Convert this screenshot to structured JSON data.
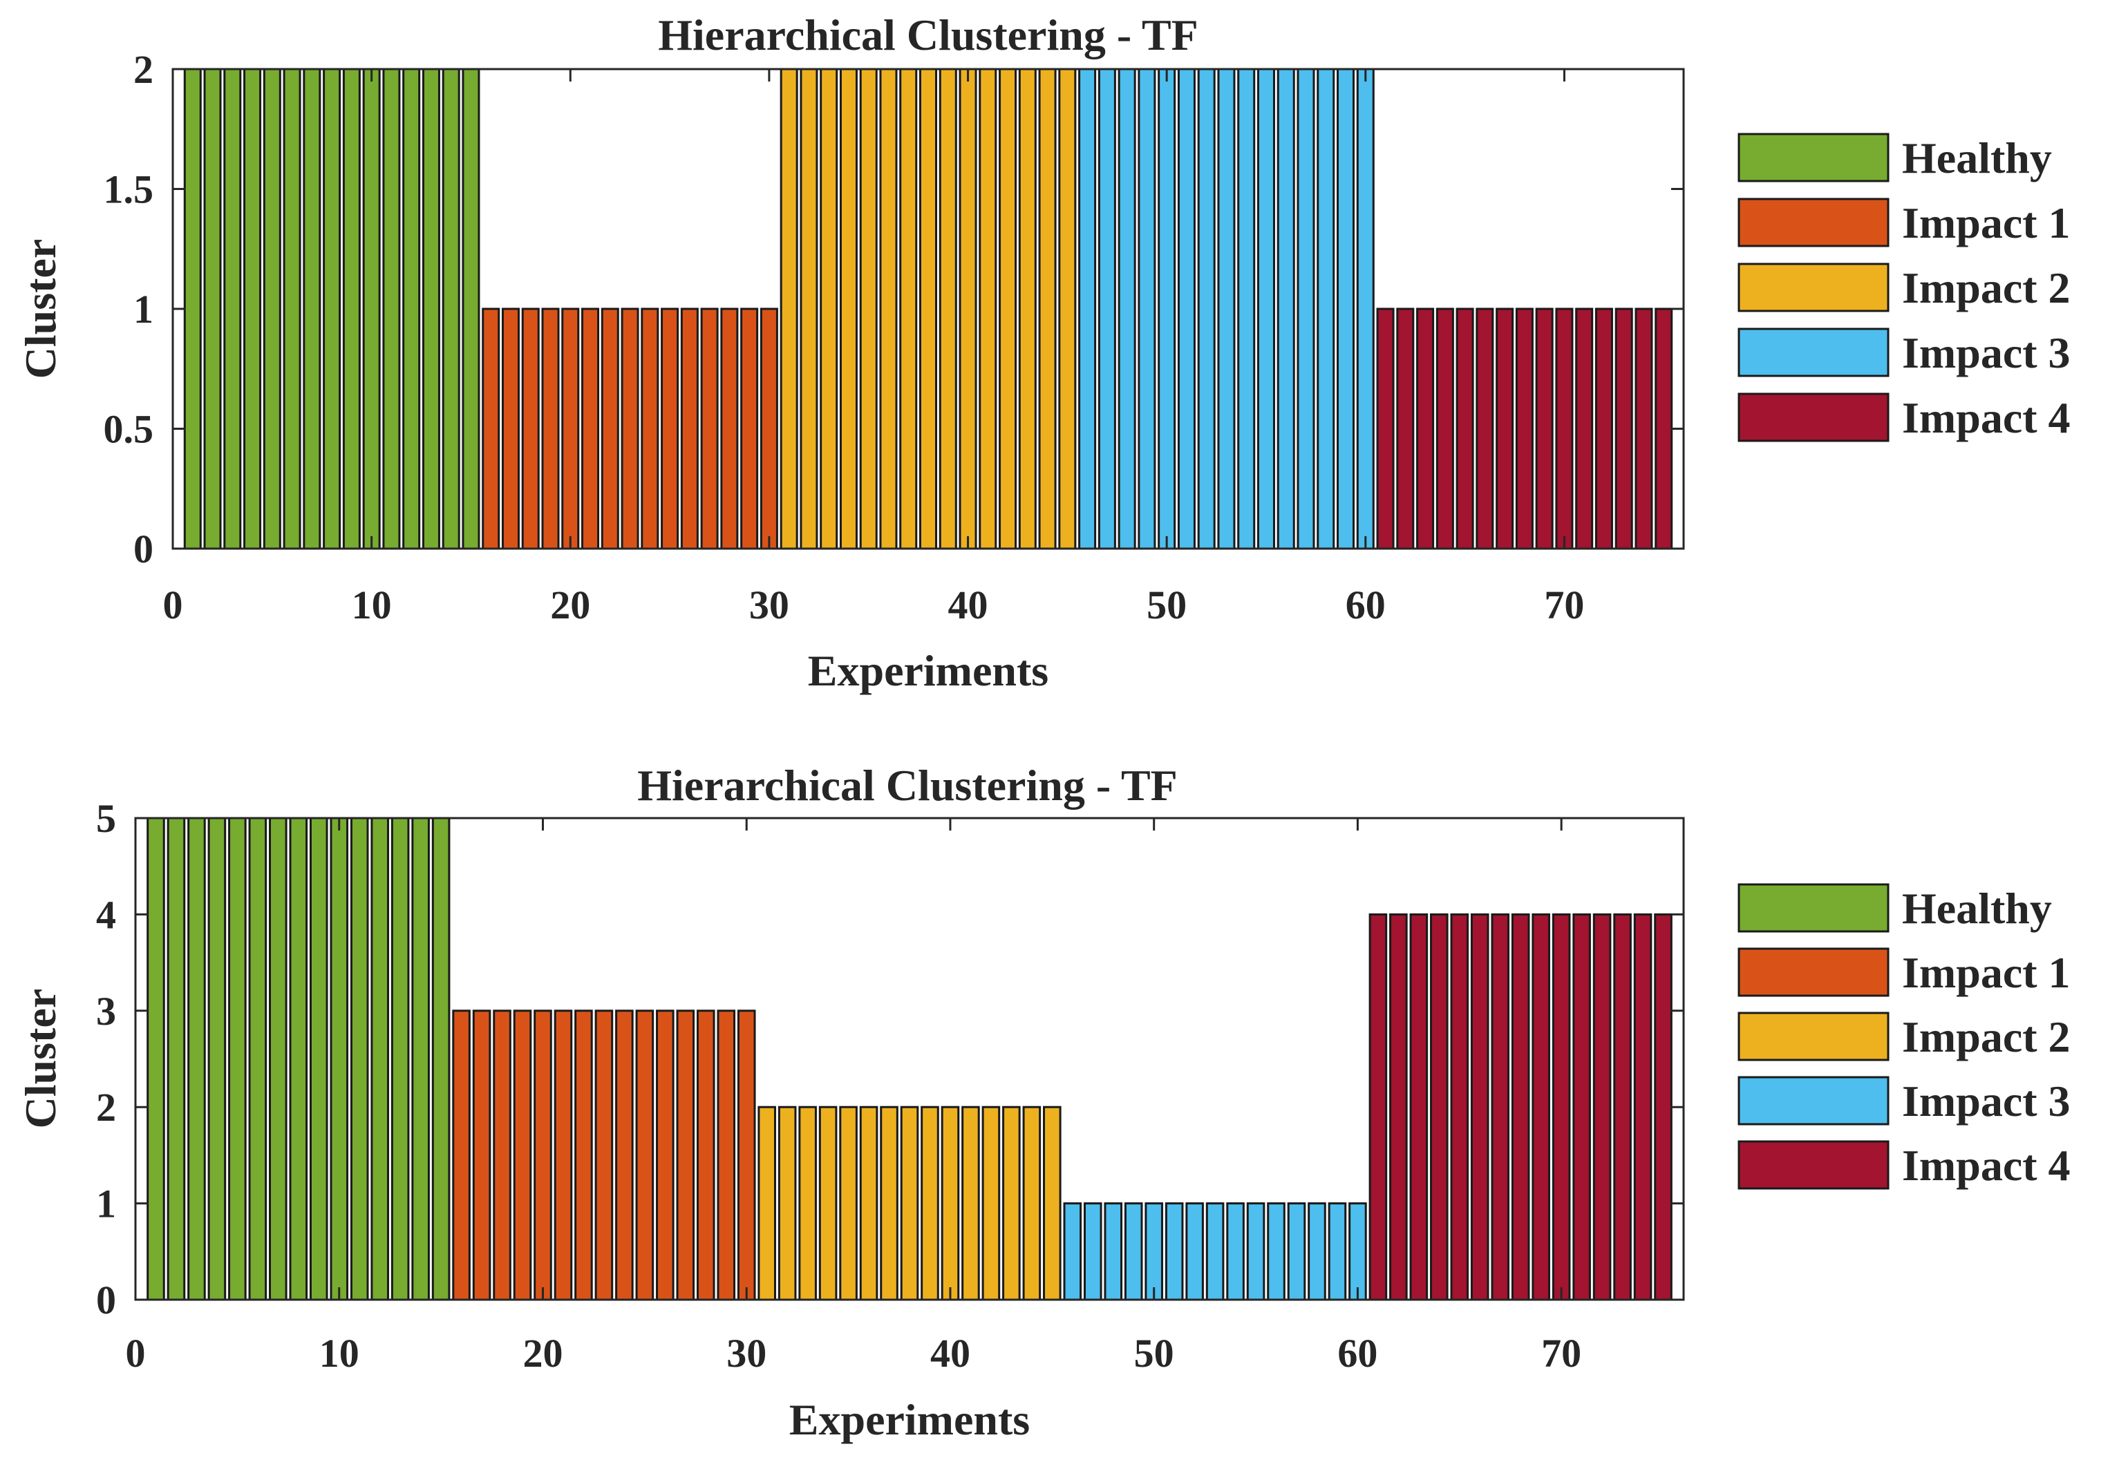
{
  "chart_data": [
    {
      "type": "bar",
      "title": "Hierarchical Clustering - TF",
      "xlabel": "Experiments",
      "ylabel": "Cluster",
      "xlim": [
        0,
        76
      ],
      "ylim": [
        0,
        2
      ],
      "xticks": [
        "0",
        "10",
        "20",
        "30",
        "40",
        "50",
        "60",
        "70"
      ],
      "yticks": [
        "0",
        "0.5",
        "1",
        "1.5",
        "2"
      ],
      "legend_position": "outside-right",
      "series": [
        {
          "name": "Healthy",
          "color": "#77AC30",
          "x": [
            1,
            2,
            3,
            4,
            5,
            6,
            7,
            8,
            9,
            10,
            11,
            12,
            13,
            14,
            15
          ],
          "values": [
            2,
            2,
            2,
            2,
            2,
            2,
            2,
            2,
            2,
            2,
            2,
            2,
            2,
            2,
            2
          ]
        },
        {
          "name": "Impact 1",
          "color": "#D95319",
          "x": [
            16,
            17,
            18,
            19,
            20,
            21,
            22,
            23,
            24,
            25,
            26,
            27,
            28,
            29,
            30
          ],
          "values": [
            1,
            1,
            1,
            1,
            1,
            1,
            1,
            1,
            1,
            1,
            1,
            1,
            1,
            1,
            1
          ]
        },
        {
          "name": "Impact 2",
          "color": "#EDB120",
          "x": [
            31,
            32,
            33,
            34,
            35,
            36,
            37,
            38,
            39,
            40,
            41,
            42,
            43,
            44,
            45
          ],
          "values": [
            2,
            2,
            2,
            2,
            2,
            2,
            2,
            2,
            2,
            2,
            2,
            2,
            2,
            2,
            2
          ]
        },
        {
          "name": "Impact 3",
          "color": "#4DBEEE",
          "x": [
            46,
            47,
            48,
            49,
            50,
            51,
            52,
            53,
            54,
            55,
            56,
            57,
            58,
            59,
            60
          ],
          "values": [
            2,
            2,
            2,
            2,
            2,
            2,
            2,
            2,
            2,
            2,
            2,
            2,
            2,
            2,
            2
          ]
        },
        {
          "name": "Impact 4",
          "color": "#A2142F",
          "x": [
            61,
            62,
            63,
            64,
            65,
            66,
            67,
            68,
            69,
            70,
            71,
            72,
            73,
            74,
            75
          ],
          "values": [
            1,
            1,
            1,
            1,
            1,
            1,
            1,
            1,
            1,
            1,
            1,
            1,
            1,
            1,
            1
          ]
        }
      ]
    },
    {
      "type": "bar",
      "title": "Hierarchical Clustering - TF",
      "xlabel": "Experiments",
      "ylabel": "Cluster",
      "xlim": [
        0,
        76
      ],
      "ylim": [
        0,
        5
      ],
      "xticks": [
        "0",
        "10",
        "20",
        "30",
        "40",
        "50",
        "60",
        "70"
      ],
      "yticks": [
        "0",
        "1",
        "2",
        "3",
        "4",
        "5"
      ],
      "legend_position": "outside-right",
      "series": [
        {
          "name": "Healthy",
          "color": "#77AC30",
          "x": [
            1,
            2,
            3,
            4,
            5,
            6,
            7,
            8,
            9,
            10,
            11,
            12,
            13,
            14,
            15
          ],
          "values": [
            5,
            5,
            5,
            5,
            5,
            5,
            5,
            5,
            5,
            5,
            5,
            5,
            5,
            5,
            5
          ]
        },
        {
          "name": "Impact 1",
          "color": "#D95319",
          "x": [
            16,
            17,
            18,
            19,
            20,
            21,
            22,
            23,
            24,
            25,
            26,
            27,
            28,
            29,
            30
          ],
          "values": [
            3,
            3,
            3,
            3,
            3,
            3,
            3,
            3,
            3,
            3,
            3,
            3,
            3,
            3,
            3
          ]
        },
        {
          "name": "Impact 2",
          "color": "#EDB120",
          "x": [
            31,
            32,
            33,
            34,
            35,
            36,
            37,
            38,
            39,
            40,
            41,
            42,
            43,
            44,
            45
          ],
          "values": [
            2,
            2,
            2,
            2,
            2,
            2,
            2,
            2,
            2,
            2,
            2,
            2,
            2,
            2,
            2
          ]
        },
        {
          "name": "Impact 3",
          "color": "#4DBEEE",
          "x": [
            46,
            47,
            48,
            49,
            50,
            51,
            52,
            53,
            54,
            55,
            56,
            57,
            58,
            59,
            60
          ],
          "values": [
            1,
            1,
            1,
            1,
            1,
            1,
            1,
            1,
            1,
            1,
            1,
            1,
            1,
            1,
            1
          ]
        },
        {
          "name": "Impact 4",
          "color": "#A2142F",
          "x": [
            61,
            62,
            63,
            64,
            65,
            66,
            67,
            68,
            69,
            70,
            71,
            72,
            73,
            74,
            75
          ],
          "values": [
            4,
            4,
            4,
            4,
            4,
            4,
            4,
            4,
            4,
            4,
            4,
            4,
            4,
            4,
            4
          ]
        }
      ]
    }
  ]
}
